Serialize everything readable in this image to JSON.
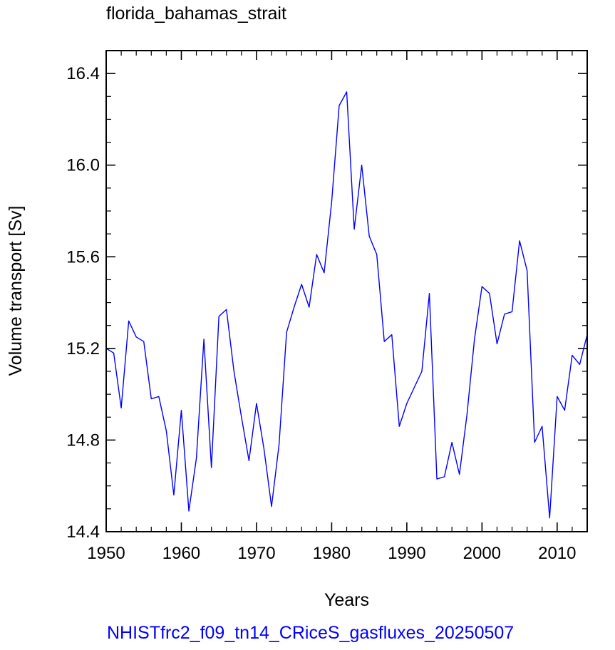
{
  "chart_data": {
    "type": "line",
    "title": "florida_bahamas_strait",
    "xlabel": "Years",
    "ylabel": "Volume transport [Sv]",
    "xlim": [
      1950,
      2014
    ],
    "ylim": [
      14.4,
      16.5
    ],
    "x_ticks": [
      1950,
      1960,
      1970,
      1980,
      1990,
      2000,
      2010
    ],
    "y_ticks": [
      14.4,
      14.8,
      15.2,
      15.6,
      16.0,
      16.4
    ],
    "x_tick_labels": [
      "1950",
      "1960",
      "1970",
      "1980",
      "1990",
      "2000",
      "2010"
    ],
    "y_tick_labels": [
      "14.4",
      "14.8",
      "15.2",
      "15.6",
      "16.0",
      "16.4"
    ],
    "series": [
      {
        "color": "#0000ff",
        "x": [
          1950,
          1951,
          1952,
          1953,
          1954,
          1955,
          1956,
          1957,
          1958,
          1959,
          1960,
          1961,
          1962,
          1963,
          1964,
          1965,
          1966,
          1967,
          1968,
          1969,
          1970,
          1971,
          1972,
          1973,
          1974,
          1975,
          1976,
          1977,
          1978,
          1979,
          1980,
          1981,
          1982,
          1983,
          1984,
          1985,
          1986,
          1987,
          1988,
          1989,
          1990,
          1991,
          1992,
          1993,
          1994,
          1995,
          1996,
          1997,
          1998,
          1999,
          2000,
          2001,
          2002,
          2003,
          2004,
          2005,
          2006,
          2007,
          2008,
          2009,
          2010,
          2011,
          2012,
          2013,
          2014
        ],
        "values": [
          15.2,
          15.18,
          14.94,
          15.32,
          15.25,
          15.23,
          14.98,
          14.99,
          14.84,
          14.56,
          14.93,
          14.49,
          14.72,
          15.24,
          14.68,
          15.34,
          15.37,
          15.1,
          14.9,
          14.71,
          14.96,
          14.76,
          14.51,
          14.78,
          15.27,
          15.38,
          15.48,
          15.38,
          15.61,
          15.53,
          15.84,
          16.26,
          16.32,
          15.72,
          16.0,
          15.69,
          15.61,
          15.23,
          15.26,
          14.86,
          14.96,
          15.03,
          15.1,
          15.44,
          14.63,
          14.64,
          14.79,
          14.65,
          14.91,
          15.24,
          15.47,
          15.44,
          15.22,
          15.35,
          15.36,
          15.67,
          15.54,
          14.79,
          14.86,
          14.46,
          14.99,
          14.93,
          15.17,
          15.13,
          15.26
        ]
      }
    ],
    "grid": false
  },
  "footer": {
    "case_name": "NHISTfrc2_f09_tn14_CRiceS_gasfluxes_20250507"
  }
}
